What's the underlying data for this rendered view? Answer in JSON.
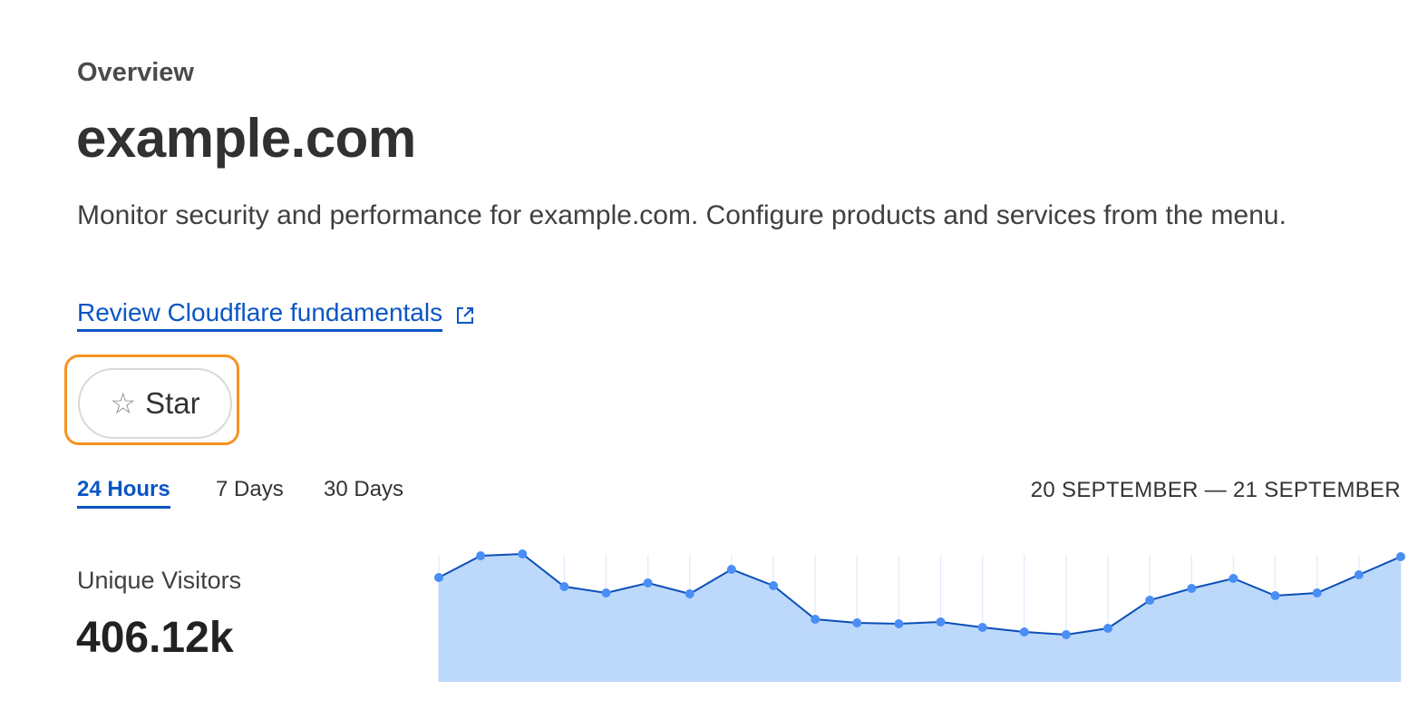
{
  "header": {
    "breadcrumb": "Overview",
    "title": "example.com",
    "description": "Monitor security and performance for example.com. Configure products and services from the menu.",
    "link_label": "Review Cloudflare fundamentals",
    "link_icon": "external-link-icon"
  },
  "star_button": {
    "label": "Star",
    "icon": "star-outline-icon",
    "focus_color": "#f6921e"
  },
  "time_tabs": [
    {
      "label": "24 Hours",
      "active": true
    },
    {
      "label": "7 Days",
      "active": false
    },
    {
      "label": "30 Days",
      "active": false
    }
  ],
  "date_range": "20 SEPTEMBER — 21 SEPTEMBER",
  "metric": {
    "label": "Unique Visitors",
    "value": "406.12k"
  },
  "chart_data": {
    "type": "area",
    "title": "",
    "xlabel": "",
    "ylabel": "",
    "grid": "vertical",
    "line_color": "#0a4fb8",
    "fill_color": "#b8d6fb",
    "marker_color": "#4a8ef5",
    "values": [
      115,
      139,
      141,
      105,
      98,
      109,
      97,
      124,
      106,
      69,
      65,
      64,
      66,
      60,
      55,
      52,
      59,
      90,
      103,
      114,
      95,
      98,
      118,
      138
    ]
  }
}
